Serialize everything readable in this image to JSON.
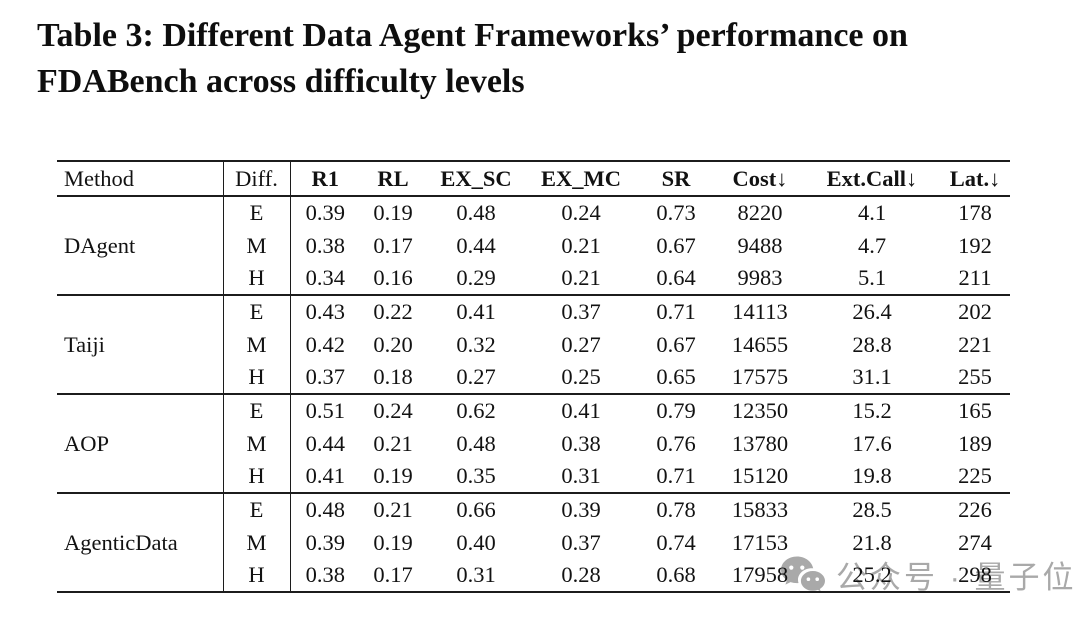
{
  "page": {
    "background": "#ffffff"
  },
  "title": {
    "line1": "Table 3: Different Data Agent Frameworks’ performance on",
    "line2": "FDABench across difficulty levels"
  },
  "table": {
    "headers": [
      "Method",
      "Diff.",
      "R1",
      "RL",
      "EX_SC",
      "EX_MC",
      "SR",
      "Cost↓",
      "Ext.Call↓",
      "Lat.↓"
    ],
    "groups": [
      {
        "method": "DAgent",
        "rows": [
          {
            "diff": "E",
            "values": [
              "0.39",
              "0.19",
              "0.48",
              "0.24",
              "0.73",
              "8220",
              "4.1",
              "178"
            ]
          },
          {
            "diff": "M",
            "values": [
              "0.38",
              "0.17",
              "0.44",
              "0.21",
              "0.67",
              "9488",
              "4.7",
              "192"
            ]
          },
          {
            "diff": "H",
            "values": [
              "0.34",
              "0.16",
              "0.29",
              "0.21",
              "0.64",
              "9983",
              "5.1",
              "211"
            ]
          }
        ]
      },
      {
        "method": "Taiji",
        "rows": [
          {
            "diff": "E",
            "values": [
              "0.43",
              "0.22",
              "0.41",
              "0.37",
              "0.71",
              "14113",
              "26.4",
              "202"
            ]
          },
          {
            "diff": "M",
            "values": [
              "0.42",
              "0.20",
              "0.32",
              "0.27",
              "0.67",
              "14655",
              "28.8",
              "221"
            ]
          },
          {
            "diff": "H",
            "values": [
              "0.37",
              "0.18",
              "0.27",
              "0.25",
              "0.65",
              "17575",
              "31.1",
              "255"
            ]
          }
        ]
      },
      {
        "method": "AOP",
        "rows": [
          {
            "diff": "E",
            "values": [
              "0.51",
              "0.24",
              "0.62",
              "0.41",
              "0.79",
              "12350",
              "15.2",
              "165"
            ]
          },
          {
            "diff": "M",
            "values": [
              "0.44",
              "0.21",
              "0.48",
              "0.38",
              "0.76",
              "13780",
              "17.6",
              "189"
            ]
          },
          {
            "diff": "H",
            "values": [
              "0.41",
              "0.19",
              "0.35",
              "0.31",
              "0.71",
              "15120",
              "19.8",
              "225"
            ]
          }
        ]
      },
      {
        "method": "AgenticData",
        "rows": [
          {
            "diff": "E",
            "values": [
              "0.48",
              "0.21",
              "0.66",
              "0.39",
              "0.78",
              "15833",
              "28.5",
              "226"
            ]
          },
          {
            "diff": "M",
            "values": [
              "0.39",
              "0.19",
              "0.40",
              "0.37",
              "0.74",
              "17153",
              "21.8",
              "274"
            ]
          },
          {
            "diff": "H",
            "values": [
              "0.38",
              "0.17",
              "0.31",
              "0.28",
              "0.68",
              "17958",
              "25.2",
              "298"
            ]
          }
        ]
      }
    ]
  },
  "watermark": {
    "icon": "wechat-icon",
    "text": "公众号 · 量子位",
    "color": "#a9a9a9"
  }
}
